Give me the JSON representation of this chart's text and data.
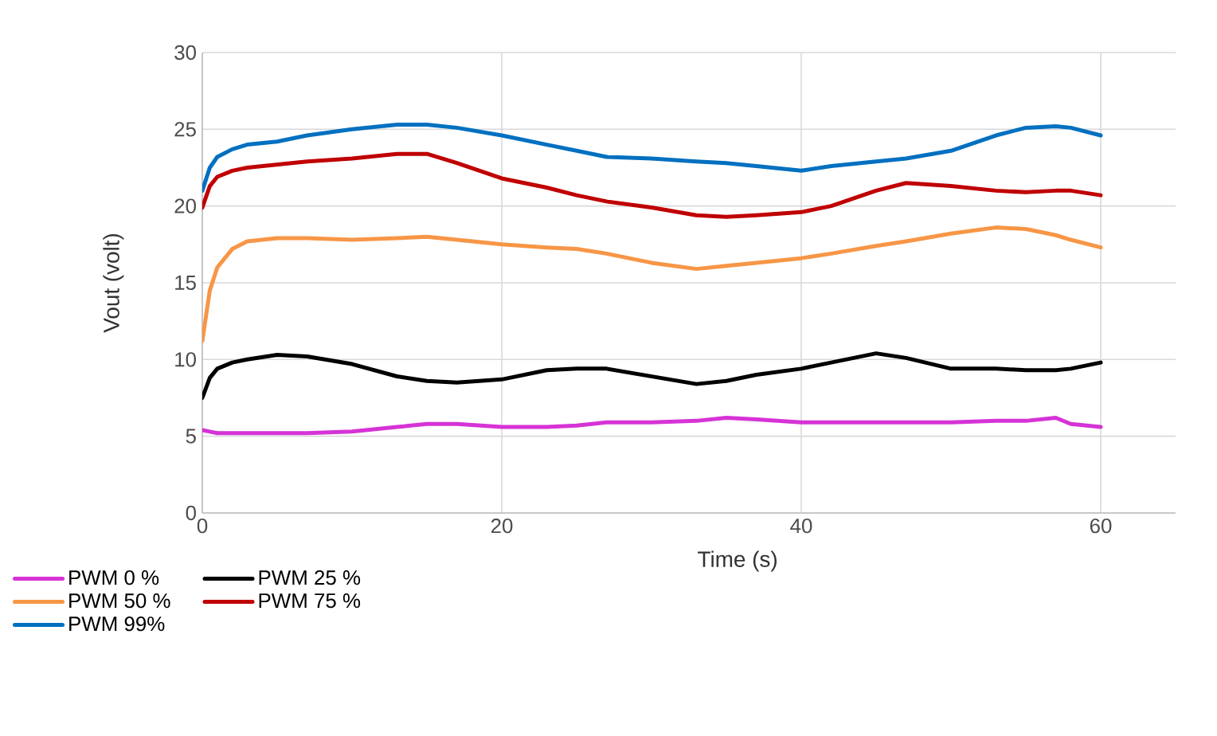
{
  "chart_data": {
    "type": "line",
    "xlabel": "Time (s)",
    "ylabel": "Vout (volt)",
    "xlim": [
      0,
      65
    ],
    "ylim": [
      0,
      30
    ],
    "xticks": [
      0,
      20,
      40,
      60
    ],
    "yticks": [
      0,
      5,
      10,
      15,
      20,
      25,
      30
    ],
    "grid": true,
    "legend": "bottom left",
    "marker": "none",
    "line_style": "solid",
    "x": [
      0,
      0.5,
      1,
      2,
      3,
      5,
      7,
      10,
      13,
      15,
      17,
      20,
      23,
      25,
      27,
      30,
      33,
      35,
      37,
      40,
      42,
      45,
      47,
      50,
      53,
      55,
      57,
      58,
      60
    ],
    "series": [
      {
        "name": "PWM 0 %",
        "color": "#d633d6",
        "values": [
          5.4,
          5.3,
          5.2,
          5.2,
          5.2,
          5.2,
          5.2,
          5.3,
          5.6,
          5.8,
          5.8,
          5.6,
          5.6,
          5.7,
          5.9,
          5.9,
          6.0,
          6.2,
          6.1,
          5.9,
          5.9,
          5.9,
          5.9,
          5.9,
          6.0,
          6.0,
          6.2,
          5.8,
          5.6
        ]
      },
      {
        "name": "PWM 25 %",
        "color": "#000000",
        "values": [
          7.5,
          8.8,
          9.4,
          9.8,
          10.0,
          10.3,
          10.2,
          9.7,
          8.9,
          8.6,
          8.5,
          8.7,
          9.3,
          9.4,
          9.4,
          8.9,
          8.4,
          8.6,
          9.0,
          9.4,
          9.8,
          10.4,
          10.1,
          9.4,
          9.4,
          9.3,
          9.3,
          9.4,
          9.8
        ]
      },
      {
        "name": "PWM 50 %",
        "color": "#f79646",
        "values": [
          11.2,
          14.5,
          16.0,
          17.2,
          17.7,
          17.9,
          17.9,
          17.8,
          17.9,
          18.0,
          17.8,
          17.5,
          17.3,
          17.2,
          16.9,
          16.3,
          15.9,
          16.1,
          16.3,
          16.6,
          16.9,
          17.4,
          17.7,
          18.2,
          18.6,
          18.5,
          18.1,
          17.8,
          17.3
        ]
      },
      {
        "name": "PWM 75 %",
        "color": "#c00000",
        "values": [
          19.9,
          21.3,
          21.9,
          22.3,
          22.5,
          22.7,
          22.9,
          23.1,
          23.4,
          23.4,
          22.8,
          21.8,
          21.2,
          20.7,
          20.3,
          19.9,
          19.4,
          19.3,
          19.4,
          19.6,
          20.0,
          21.0,
          21.5,
          21.3,
          21.0,
          20.9,
          21.0,
          21.0,
          20.7
        ]
      },
      {
        "name": "PWM 99%",
        "color": "#0070c0",
        "values": [
          21.0,
          22.5,
          23.2,
          23.7,
          24.0,
          24.2,
          24.6,
          25.0,
          25.3,
          25.3,
          25.1,
          24.6,
          24.0,
          23.6,
          23.2,
          23.1,
          22.9,
          22.8,
          22.6,
          22.3,
          22.6,
          22.9,
          23.1,
          23.6,
          24.6,
          25.1,
          25.2,
          25.1,
          24.6
        ]
      }
    ]
  }
}
